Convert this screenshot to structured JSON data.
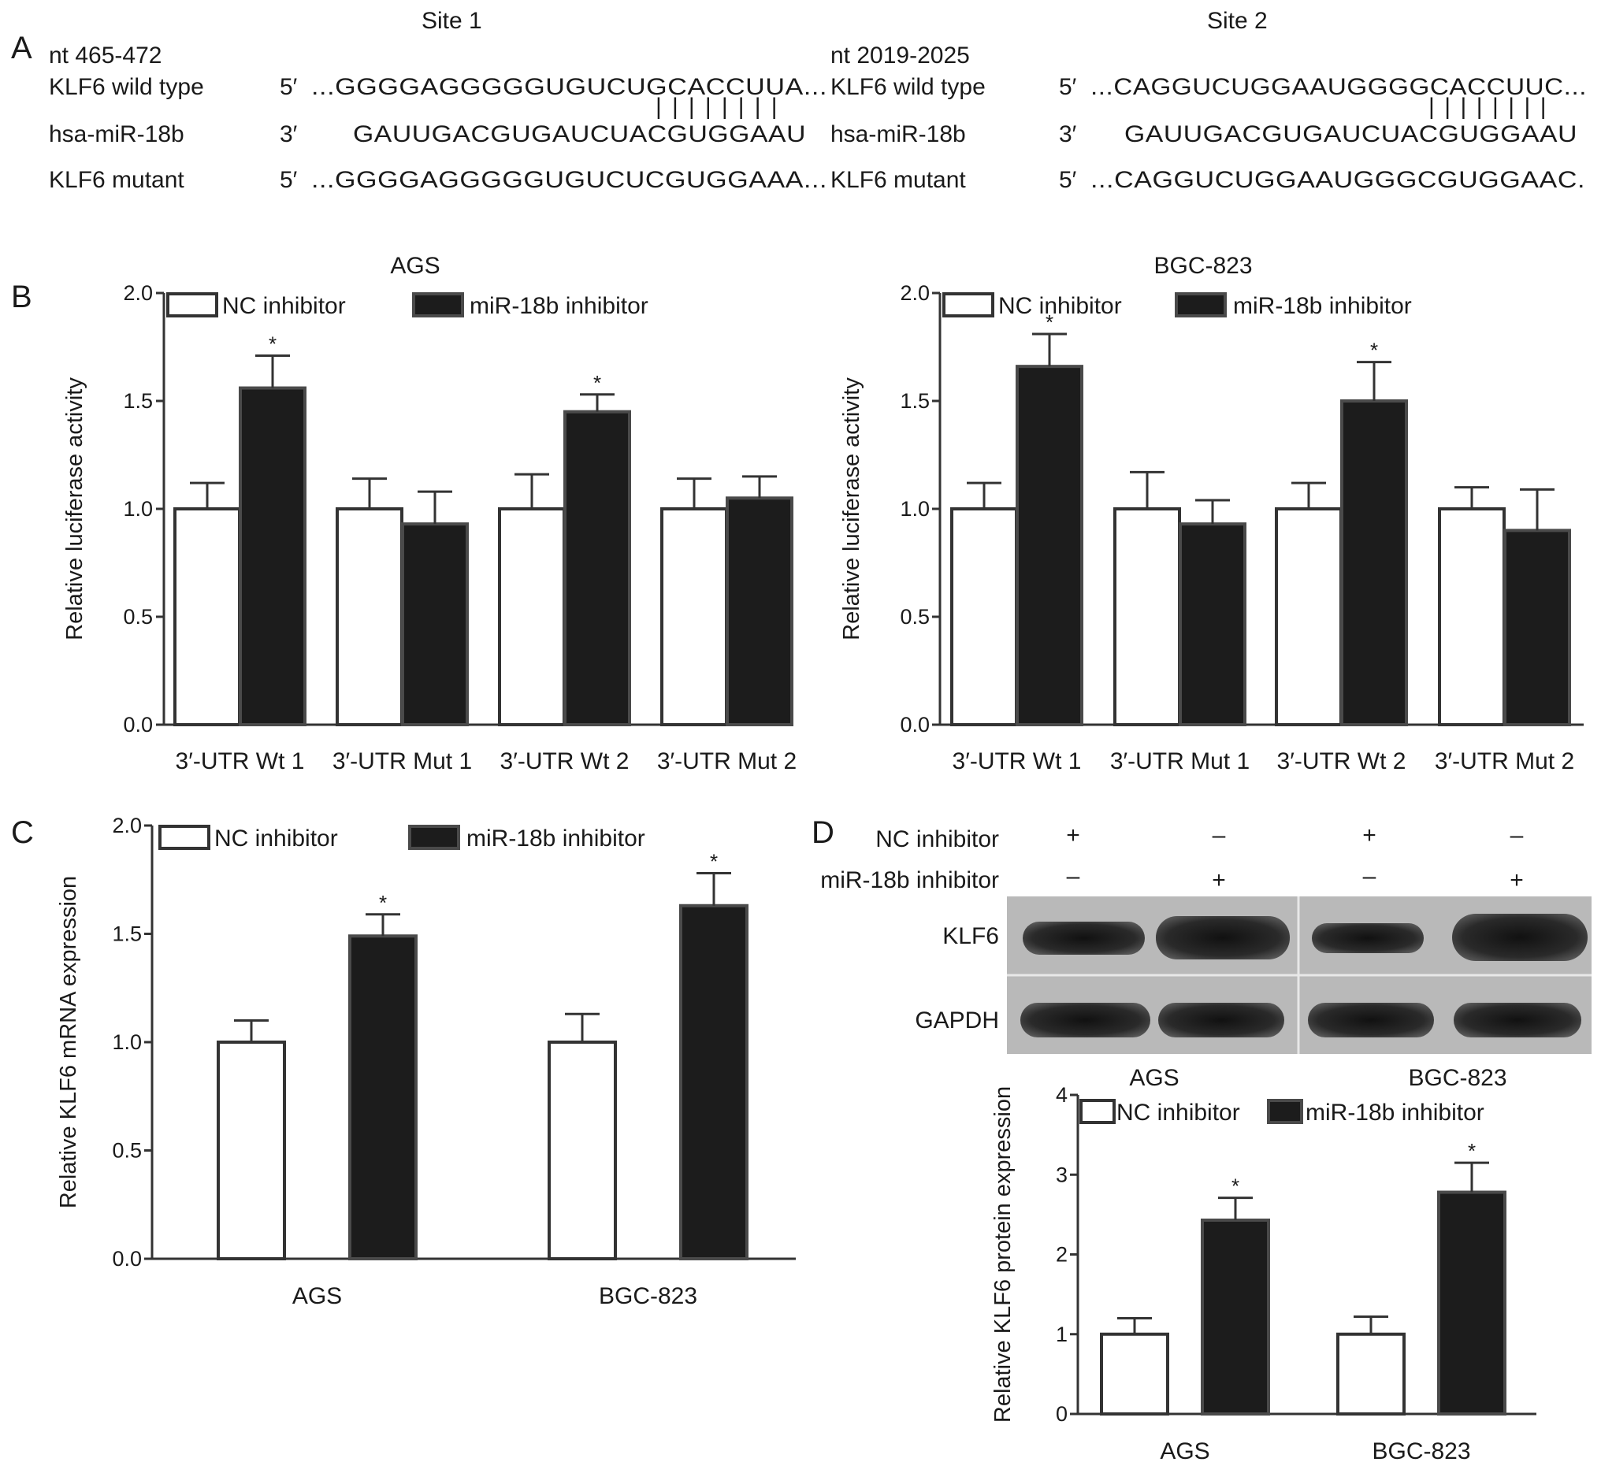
{
  "panel_a": {
    "letter": "A",
    "sites": [
      {
        "title": "Site 1",
        "nt_range": "nt 465-472",
        "rows": [
          {
            "label": "KLF6 wild type",
            "end": "5′",
            "seq": "...GGGGAGGGGGUGUCUGCACCUUA..."
          },
          {
            "label": "hsa-miR-18b",
            "end": "3′",
            "seq": "GAUUGACGUGAUCUACGUGGAAU"
          },
          {
            "label": "KLF6 mutant",
            "end": "5′",
            "seq": "...GGGGAGGGGGUGUCUCGUGGAAA..."
          }
        ],
        "pairing": "| | | | | | | |"
      },
      {
        "title": "Site 2",
        "nt_range": "nt 2019-2025",
        "rows": [
          {
            "label": "KLF6 wild type",
            "end": "5′",
            "seq": "...CAGGUCUGGAAUGGGGCACCUUC..."
          },
          {
            "label": "hsa-miR-18b",
            "end": "3′",
            "seq": "GAUUGACGUGAUCUACGUGGAAU"
          },
          {
            "label": "KLF6 mutant",
            "end": "5′",
            "seq": "...CAGGUCUGGAAUGGGCGUGGAAC."
          }
        ],
        "pairing": "| | | | | | | |"
      }
    ]
  },
  "panel_d_blot": {
    "letter": "D",
    "row_labels": [
      "NC inhibitor",
      "miR-18b inhibitor"
    ],
    "nc_marks": [
      "+",
      "–",
      "+",
      "–"
    ],
    "mir_marks": [
      "–",
      "+",
      "–",
      "+"
    ],
    "bands": [
      "KLF6",
      "GAPDH"
    ],
    "cell_lines": [
      "AGS",
      "BGC-823"
    ]
  },
  "chart_data": [
    {
      "type": "bar",
      "panel": "B",
      "title": "AGS",
      "ylabel": "Relative luciferase activity",
      "xlabel": "",
      "ylim": [
        0,
        2.0
      ],
      "yticks": [
        "0.0",
        "0.5",
        "1.0",
        "1.5",
        "2.0"
      ],
      "categories": [
        "3′-UTR Wt 1",
        "3′-UTR Mut 1",
        "3′-UTR Wt 2",
        "3′-UTR Mut 2"
      ],
      "series": [
        {
          "name": "NC inhibitor",
          "values": [
            1.0,
            1.0,
            1.0,
            1.0
          ],
          "errors": [
            0.12,
            0.14,
            0.16,
            0.14
          ]
        },
        {
          "name": "miR-18b inhibitor",
          "values": [
            1.56,
            0.93,
            1.45,
            1.05
          ],
          "errors": [
            0.15,
            0.15,
            0.08,
            0.1
          ]
        }
      ],
      "significance": [
        "*",
        "",
        "*",
        ""
      ],
      "legend_position": "top-left"
    },
    {
      "type": "bar",
      "panel": "",
      "title": "BGC-823",
      "ylabel": "Relative luciferase activity",
      "xlabel": "",
      "ylim": [
        0,
        2.0
      ],
      "yticks": [
        "0.0",
        "0.5",
        "1.0",
        "1.5",
        "2.0"
      ],
      "categories": [
        "3′-UTR Wt 1",
        "3′-UTR Mut 1",
        "3′-UTR Wt 2",
        "3′-UTR Mut 2"
      ],
      "series": [
        {
          "name": "NC inhibitor",
          "values": [
            1.0,
            1.0,
            1.0,
            1.0
          ],
          "errors": [
            0.12,
            0.17,
            0.12,
            0.1
          ]
        },
        {
          "name": "miR-18b inhibitor",
          "values": [
            1.66,
            0.93,
            1.5,
            0.9
          ],
          "errors": [
            0.15,
            0.11,
            0.18,
            0.19
          ]
        }
      ],
      "significance": [
        "*",
        "",
        "*",
        ""
      ],
      "legend_position": "top-left"
    },
    {
      "type": "bar",
      "panel": "C",
      "title": "",
      "ylabel": "Relative KLF6 mRNA expression",
      "xlabel": "",
      "ylim": [
        0,
        2.0
      ],
      "yticks": [
        "0.0",
        "0.5",
        "1.0",
        "1.5",
        "2.0"
      ],
      "categories": [
        "AGS",
        "BGC-823"
      ],
      "series": [
        {
          "name": "NC inhibitor",
          "values": [
            1.0,
            1.0
          ],
          "errors": [
            0.1,
            0.13
          ]
        },
        {
          "name": "miR-18b inhibitor",
          "values": [
            1.49,
            1.63
          ],
          "errors": [
            0.1,
            0.15
          ]
        }
      ],
      "significance": [
        "*",
        "*"
      ],
      "legend_position": "top-left"
    },
    {
      "type": "bar",
      "panel": "",
      "title": "",
      "ylabel": "Relative KLF6 protein expression",
      "xlabel": "",
      "ylim": [
        0,
        4
      ],
      "yticks": [
        "0",
        "1",
        "2",
        "3",
        "4"
      ],
      "categories": [
        "AGS",
        "BGC-823"
      ],
      "series": [
        {
          "name": "NC inhibitor",
          "values": [
            1.0,
            1.0
          ],
          "errors": [
            0.2,
            0.22
          ]
        },
        {
          "name": "miR-18b inhibitor",
          "values": [
            2.43,
            2.78
          ],
          "errors": [
            0.28,
            0.37
          ]
        }
      ],
      "significance": [
        "*",
        "*"
      ],
      "legend_position": "top-left"
    }
  ],
  "colors": {
    "open_bar_fill": "#ffffff",
    "filled_bar_fill": "#1c1c1c",
    "axis": "#333333",
    "blot_background": "#b8b8b8",
    "band": "#2a2a2a"
  }
}
